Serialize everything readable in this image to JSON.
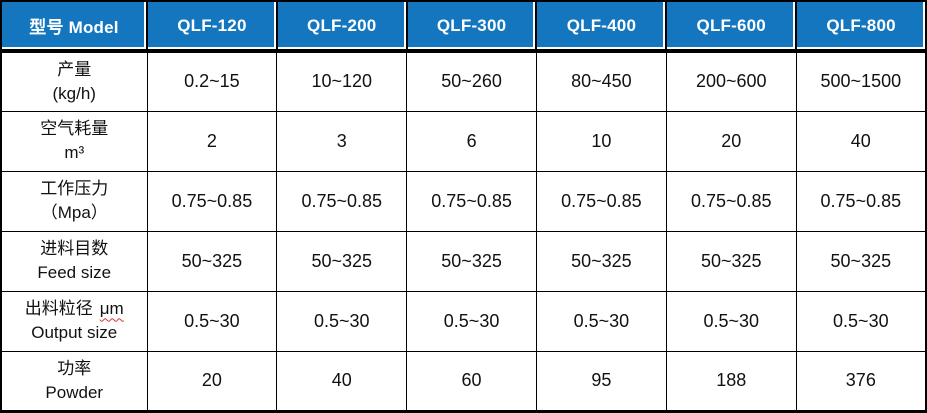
{
  "colors": {
    "header_bg": "#1476BE",
    "header_text": "#FFFFFF",
    "border": "#000000",
    "body_text": "#111111",
    "spellcheck_underline": "#E03030"
  },
  "table": {
    "header": {
      "label": "型号 Model",
      "models": [
        "QLF-120",
        "QLF-200",
        "QLF-300",
        "QLF-400",
        "QLF-600",
        "QLF-800"
      ]
    },
    "rows": [
      {
        "label_zh": "产量",
        "label_sub": "(kg/h)",
        "values": [
          "0.2~15",
          "10~120",
          "50~260",
          "80~450",
          "200~600",
          "500~1500"
        ]
      },
      {
        "label_zh": "空气耗量",
        "label_sub": "m³",
        "values": [
          "2",
          "3",
          "6",
          "10",
          "20",
          "40"
        ]
      },
      {
        "label_zh": "工作压力",
        "label_sub": "（Mpa）",
        "values": [
          "0.75~0.85",
          "0.75~0.85",
          "0.75~0.85",
          "0.75~0.85",
          "0.75~0.85",
          "0.75~0.85"
        ]
      },
      {
        "label_zh": "进料目数",
        "label_sub": "Feed size",
        "values": [
          "50~325",
          "50~325",
          "50~325",
          "50~325",
          "50~325",
          "50~325"
        ]
      },
      {
        "label_zh": "出料粒径",
        "label_unit": "μm",
        "label_sub": "Output size",
        "values": [
          "0.5~30",
          "0.5~30",
          "0.5~30",
          "0.5~30",
          "0.5~30",
          "0.5~30"
        ]
      },
      {
        "label_zh": "功率",
        "label_sub": "Powder",
        "values": [
          "20",
          "40",
          "60",
          "95",
          "188",
          "376"
        ]
      }
    ]
  }
}
